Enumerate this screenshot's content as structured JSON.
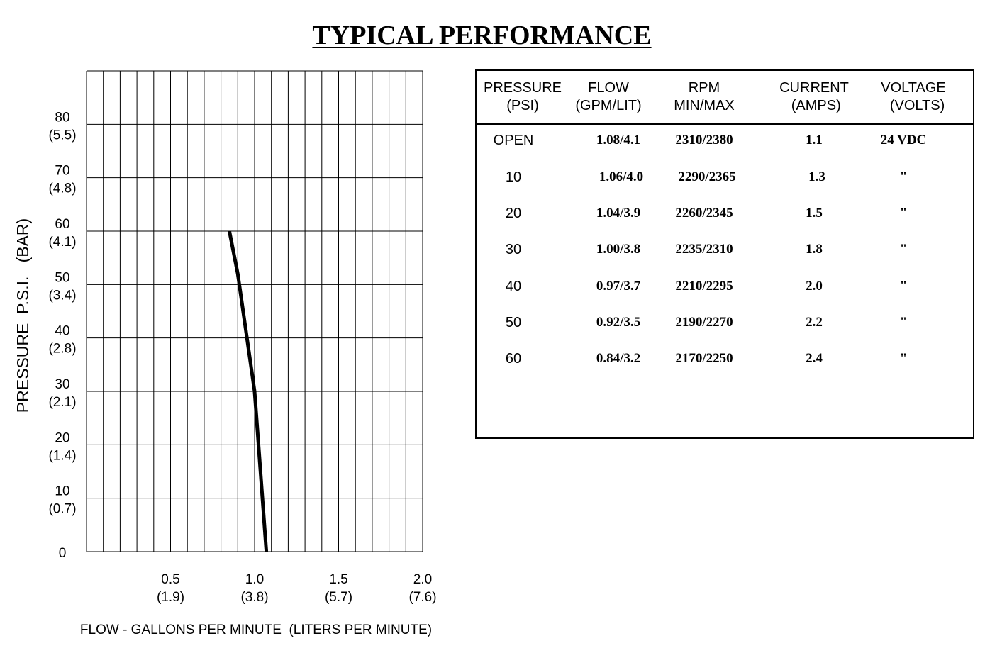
{
  "chart_data": {
    "type": "line",
    "title": "TYPICAL PERFORMANCE",
    "xlabel": "FLOW - GALLONS PER MINUTE  (LITERS PER MINUTE)",
    "ylabel": "PRESSURE  P.S.I.   (BAR)",
    "xlim": [
      0,
      2.0
    ],
    "ylim": [
      0,
      90
    ],
    "grid": true,
    "x_ticks": [
      {
        "value": 0.5,
        "label": "0.5",
        "sub": "(1.9)"
      },
      {
        "value": 1.0,
        "label": "1.0",
        "sub": "(3.8)"
      },
      {
        "value": 1.5,
        "label": "1.5",
        "sub": "(5.7)"
      },
      {
        "value": 2.0,
        "label": "2.0",
        "sub": "(7.6)"
      }
    ],
    "y_ticks": [
      {
        "value": 0,
        "label": "0",
        "sub": ""
      },
      {
        "value": 10,
        "label": "10",
        "sub": "(0.7)"
      },
      {
        "value": 20,
        "label": "20",
        "sub": "(1.4)"
      },
      {
        "value": 30,
        "label": "30",
        "sub": "(2.1)"
      },
      {
        "value": 40,
        "label": "40",
        "sub": "(2.8)"
      },
      {
        "value": 50,
        "label": "50",
        "sub": "(3.4)"
      },
      {
        "value": 60,
        "label": "60",
        "sub": "(4.1)"
      },
      {
        "value": 70,
        "label": "70",
        "sub": "(4.8)"
      },
      {
        "value": 80,
        "label": "80",
        "sub": "(5.5)"
      }
    ],
    "series": [
      {
        "points": [
          {
            "x": 1.07,
            "y": 0
          },
          {
            "x": 1.0,
            "y": 30
          },
          {
            "x": 0.9,
            "y": 52
          },
          {
            "x": 0.85,
            "y": 60
          }
        ]
      }
    ]
  },
  "table": {
    "headers": [
      [
        "PRESSURE",
        "(PSI)"
      ],
      [
        "FLOW",
        "(GPM/LIT)"
      ],
      [
        "RPM",
        "MIN/MAX"
      ],
      [
        "CURRENT",
        " (AMPS)"
      ],
      [
        "VOLTAGE",
        "  (VOLTS)"
      ]
    ],
    "rows": [
      [
        "OPEN",
        "1.08/4.1",
        "2310/2380",
        "1.1",
        "24 VDC"
      ],
      [
        "10",
        "1.06/4.0",
        "2290/2365",
        "1.3",
        "\""
      ],
      [
        "20",
        "1.04/3.9",
        "2260/2345",
        "1.5",
        "\""
      ],
      [
        "30",
        "1.00/3.8",
        "2235/2310",
        "1.8",
        "\""
      ],
      [
        "40",
        "0.97/3.7",
        "2210/2295",
        "2.0",
        "\""
      ],
      [
        "50",
        "0.92/3.5",
        "2190/2270",
        "2.2",
        "\""
      ],
      [
        "60",
        "0.84/3.2",
        "2170/2250",
        "2.4",
        "\""
      ]
    ]
  }
}
